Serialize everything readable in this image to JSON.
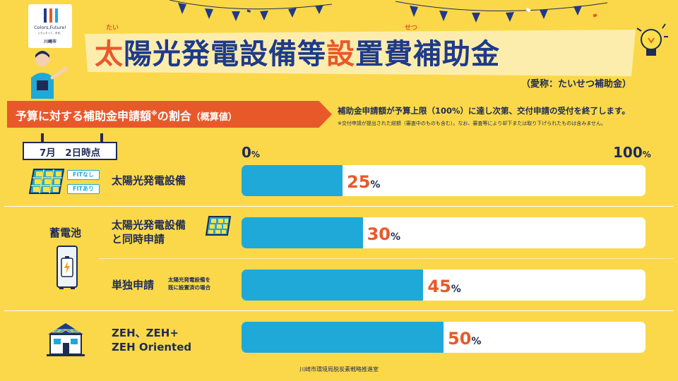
{
  "logo": {
    "tagline": "Colors,Future!",
    "subtag": "いろいろって、未来。",
    "city": "川崎市",
    "bar_colors": [
      "#1e3a8a",
      "#e8592a",
      "#1fa9d8"
    ]
  },
  "title": {
    "accent_char": "太",
    "part1": "陽光発電設備等",
    "accent_char2": "設",
    "part2": "置費補助金",
    "ruby1": "たい",
    "ruby2": "せつ"
  },
  "nickname": "（愛称：たいせつ補助金）",
  "banner": {
    "main": "予算に対する補助金申請額",
    "mark": "※",
    "main2": "の割合",
    "paren": "（概算値）"
  },
  "notes": {
    "main": "補助金申請額が予算上限（100%）に達し次第、交付申請の受付を終了します。",
    "sub": "※交付申請が提出された総額（審査中のものも含む）。なお、審査等により却下または取り下げられたものは含みません。"
  },
  "date": "7月　2日時点",
  "scale": {
    "min": "0",
    "max": "100",
    "unit": "%"
  },
  "rows": [
    {
      "label": "太陽光発電設備",
      "value": 25,
      "display": "25",
      "unit": "%",
      "tags": [
        "FITなし",
        "FITあり"
      ]
    },
    {
      "group": "蓄電池",
      "label_line1": "太陽光発電設備",
      "label_line2": "と同時申請",
      "value": 30,
      "display": "30",
      "unit": "%"
    },
    {
      "label": "単独申請",
      "sub_line1": "太陽光発電設備を",
      "sub_line2": "既に設置済の場合",
      "value": 45,
      "display": "45",
      "unit": "%"
    },
    {
      "label_line1": "ZEH、ZEH+",
      "label_line2": "ZEH Oriented",
      "value": 50,
      "display": "50",
      "unit": "%"
    }
  ],
  "footer": "川崎市環境局脱炭素戦略推進室",
  "colors": {
    "background": "#fbd84a",
    "accent": "#e8592a",
    "bar": "#1fa9d8",
    "navy": "#1e2b55"
  }
}
